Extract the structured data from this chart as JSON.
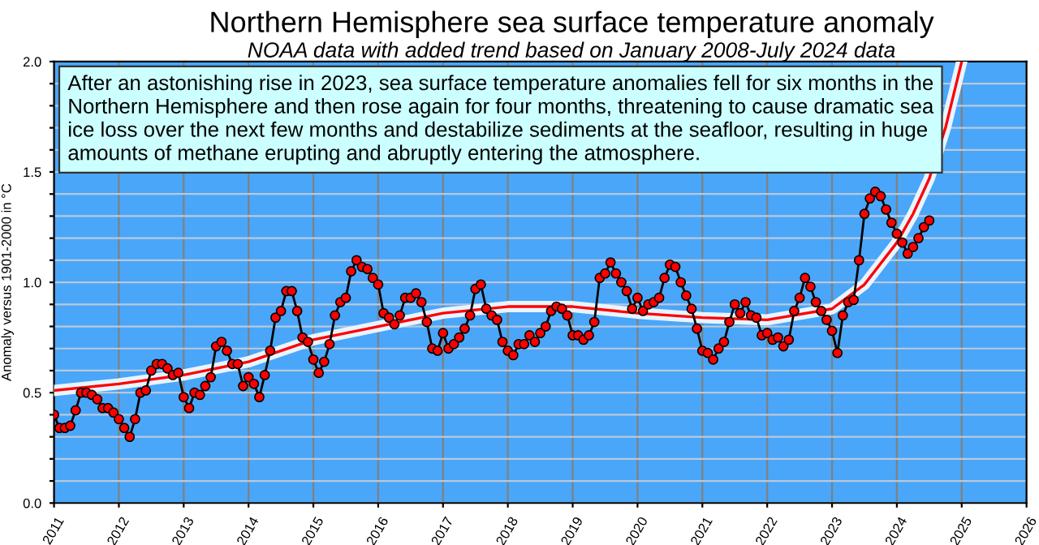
{
  "chart_data": {
    "type": "line",
    "title": "Northern Hemisphere sea surface temperature anomaly",
    "subtitle": "NOAA data with added trend based on January 2008-July 2024 data",
    "ylabel": "Anomaly versus 1901-2000 in °C",
    "annotations": [
      "After an astonishing rise in 2023, sea surface temperature anomalies fell for six months in the Northern Hemisphere and then rose again for four months, threatening to cause dramatic sea ice loss over the next few months and destabilize sediments at the seafloor, resulting in huge amounts of methane erupting and abruptly entering the atmosphere."
    ],
    "xlim": [
      "2011",
      "2026"
    ],
    "xticks": [
      "2011",
      "2012",
      "2013",
      "2014",
      "2015",
      "2016",
      "2017",
      "2018",
      "2019",
      "2020",
      "2021",
      "2022",
      "2023",
      "2024",
      "2025",
      "2026"
    ],
    "ylim": [
      0,
      2
    ],
    "yticks": [
      {
        "value": 0,
        "label": "0.0"
      },
      {
        "value": 0.1,
        "label": null
      },
      {
        "value": 0.2,
        "label": null
      },
      {
        "value": 0.3,
        "label": null
      },
      {
        "value": 0.4,
        "label": null
      },
      {
        "value": 0.5,
        "label": "0.5"
      },
      {
        "value": 0.6,
        "label": null
      },
      {
        "value": 0.7,
        "label": null
      },
      {
        "value": 0.8,
        "label": null
      },
      {
        "value": 0.9,
        "label": null
      },
      {
        "value": 1,
        "label": "1.0"
      },
      {
        "value": 1.1,
        "label": null
      },
      {
        "value": 1.2,
        "label": null
      },
      {
        "value": 1.3,
        "label": null
      },
      {
        "value": 1.4,
        "label": null
      },
      {
        "value": 1.5,
        "label": "1.5"
      },
      {
        "value": 1.6,
        "label": null
      },
      {
        "value": 1.7,
        "label": null
      },
      {
        "value": 1.8,
        "label": null
      },
      {
        "value": 1.9,
        "label": null
      },
      {
        "value": 2,
        "label": "2.0"
      }
    ],
    "grid": true,
    "series": [
      {
        "color": "#ff0000",
        "marker": "circle",
        "line_style": "solid",
        "x": [
          "2011-01",
          "2011-02",
          "2011-03",
          "2011-04",
          "2011-05",
          "2011-06",
          "2011-07",
          "2011-08",
          "2011-09",
          "2011-10",
          "2011-11",
          "2011-12",
          "2012-01",
          "2012-02",
          "2012-03",
          "2012-04",
          "2012-05",
          "2012-06",
          "2012-07",
          "2012-08",
          "2012-09",
          "2012-10",
          "2012-11",
          "2012-12",
          "2013-01",
          "2013-02",
          "2013-03",
          "2013-04",
          "2013-05",
          "2013-06",
          "2013-07",
          "2013-08",
          "2013-09",
          "2013-10",
          "2013-11",
          "2013-12",
          "2014-01",
          "2014-02",
          "2014-03",
          "2014-04",
          "2014-05",
          "2014-06",
          "2014-07",
          "2014-08",
          "2014-09",
          "2014-10",
          "2014-11",
          "2014-12",
          "2015-01",
          "2015-02",
          "2015-03",
          "2015-04",
          "2015-05",
          "2015-06",
          "2015-07",
          "2015-08",
          "2015-09",
          "2015-10",
          "2015-11",
          "2015-12",
          "2016-01",
          "2016-02",
          "2016-03",
          "2016-04",
          "2016-05",
          "2016-06",
          "2016-07",
          "2016-08",
          "2016-09",
          "2016-10",
          "2016-11",
          "2016-12",
          "2017-01",
          "2017-02",
          "2017-03",
          "2017-04",
          "2017-05",
          "2017-06",
          "2017-07",
          "2017-08",
          "2017-09",
          "2017-10",
          "2017-11",
          "2017-12",
          "2018-01",
          "2018-02",
          "2018-03",
          "2018-04",
          "2018-05",
          "2018-06",
          "2018-07",
          "2018-08",
          "2018-09",
          "2018-10",
          "2018-11",
          "2018-12",
          "2019-01",
          "2019-02",
          "2019-03",
          "2019-04",
          "2019-05",
          "2019-06",
          "2019-07",
          "2019-08",
          "2019-09",
          "2019-10",
          "2019-11",
          "2019-12",
          "2020-01",
          "2020-02",
          "2020-03",
          "2020-04",
          "2020-05",
          "2020-06",
          "2020-07",
          "2020-08",
          "2020-09",
          "2020-10",
          "2020-11",
          "2020-12",
          "2021-01",
          "2021-02",
          "2021-03",
          "2021-04",
          "2021-05",
          "2021-06",
          "2021-07",
          "2021-08",
          "2021-09",
          "2021-10",
          "2021-11",
          "2021-12",
          "2022-01",
          "2022-02",
          "2022-03",
          "2022-04",
          "2022-05",
          "2022-06",
          "2022-07",
          "2022-08",
          "2022-09",
          "2022-10",
          "2022-11",
          "2022-12",
          "2023-01",
          "2023-02",
          "2023-03",
          "2023-04",
          "2023-05",
          "2023-06",
          "2023-07",
          "2023-08",
          "2023-09",
          "2023-10",
          "2023-11",
          "2023-12",
          "2024-01",
          "2024-02",
          "2024-03",
          "2024-04",
          "2024-05",
          "2024-06",
          "2024-07"
        ],
        "values": [
          0.4,
          0.34,
          0.34,
          0.35,
          0.42,
          0.5,
          0.5,
          0.49,
          0.47,
          0.43,
          0.43,
          0.41,
          0.38,
          0.34,
          0.3,
          0.38,
          0.5,
          0.51,
          0.6,
          0.63,
          0.63,
          0.61,
          0.58,
          0.59,
          0.48,
          0.43,
          0.5,
          0.49,
          0.53,
          0.57,
          0.71,
          0.73,
          0.69,
          0.63,
          0.63,
          0.53,
          0.57,
          0.54,
          0.48,
          0.58,
          0.69,
          0.84,
          0.87,
          0.96,
          0.96,
          0.87,
          0.75,
          0.73,
          0.65,
          0.59,
          0.64,
          0.72,
          0.85,
          0.91,
          0.93,
          1.05,
          1.1,
          1.07,
          1.06,
          1.02,
          0.99,
          0.86,
          0.84,
          0.81,
          0.85,
          0.93,
          0.93,
          0.95,
          0.91,
          0.82,
          0.7,
          0.69,
          0.77,
          0.7,
          0.72,
          0.75,
          0.79,
          0.85,
          0.97,
          0.99,
          0.88,
          0.85,
          0.83,
          0.73,
          0.69,
          0.67,
          0.72,
          0.72,
          0.76,
          0.73,
          0.77,
          0.8,
          0.87,
          0.89,
          0.88,
          0.85,
          0.76,
          0.76,
          0.74,
          0.76,
          0.82,
          1.02,
          1.04,
          1.09,
          1.04,
          1.0,
          0.96,
          0.88,
          0.93,
          0.87,
          0.9,
          0.91,
          0.93,
          1.02,
          1.08,
          1.07,
          1.0,
          0.94,
          0.88,
          0.79,
          0.69,
          0.68,
          0.65,
          0.7,
          0.73,
          0.82,
          0.9,
          0.86,
          0.91,
          0.85,
          0.84,
          0.76,
          0.77,
          0.74,
          0.75,
          0.71,
          0.74,
          0.87,
          0.93,
          1.02,
          0.98,
          0.91,
          0.87,
          0.83,
          0.78,
          0.68,
          0.85,
          0.91,
          0.92,
          1.1,
          1.31,
          1.38,
          1.41,
          1.39,
          1.33,
          1.27,
          1.22,
          1.18,
          1.13,
          1.16,
          1.2,
          1.25,
          1.28
        ]
      },
      {
        "color": "#ff0000",
        "marker": "none",
        "line_style": "solid",
        "x": [
          "2011-01",
          "2012-01",
          "2013-01",
          "2014-01",
          "2015-01",
          "2016-01",
          "2017-01",
          "2018-01",
          "2019-01",
          "2020-01",
          "2021-01",
          "2022-01",
          "2023-01",
          "2023-07",
          "2024-01",
          "2024-04",
          "2024-07",
          "2024-10",
          "2025-01"
        ],
        "values": [
          0.51,
          0.54,
          0.58,
          0.64,
          0.74,
          0.8,
          0.86,
          0.89,
          0.89,
          0.86,
          0.84,
          0.83,
          0.88,
          0.99,
          1.18,
          1.31,
          1.47,
          1.7,
          2.0
        ]
      }
    ]
  }
}
